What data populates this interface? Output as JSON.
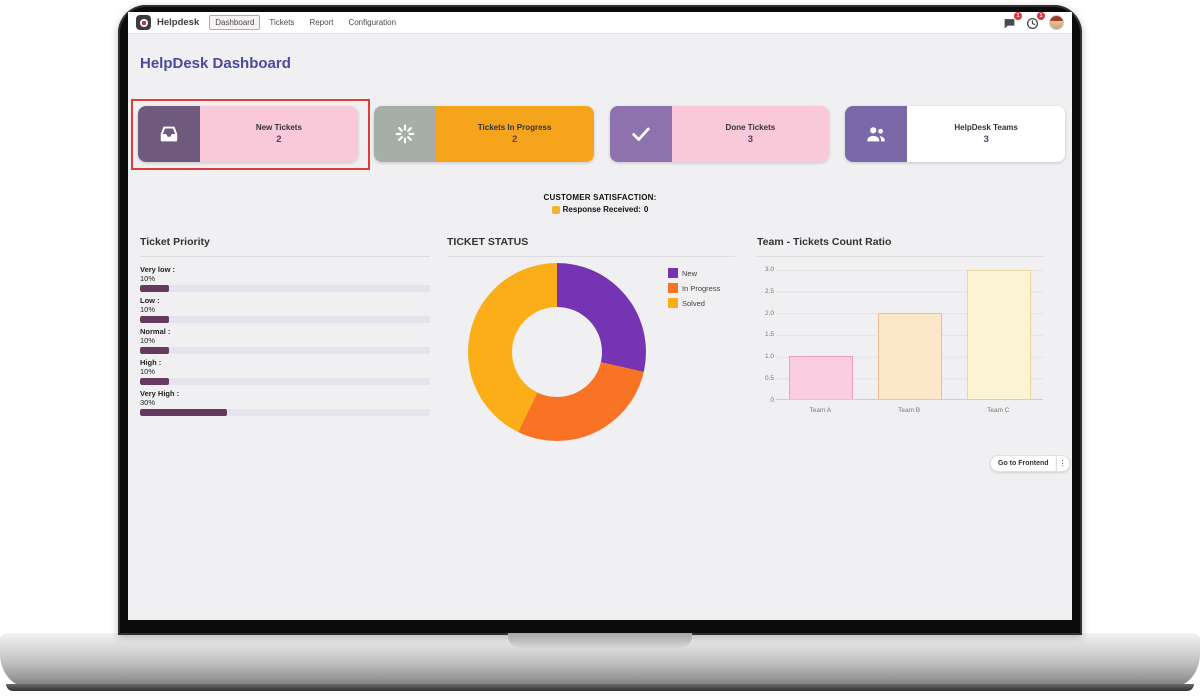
{
  "navbar": {
    "app_name": "Helpdesk",
    "menu": [
      {
        "label": "Dashboard",
        "active": true
      },
      {
        "label": "Tickets",
        "active": false
      },
      {
        "label": "Report",
        "active": false
      },
      {
        "label": "Configuration",
        "active": false
      }
    ],
    "messages_badge": "1",
    "activities_badge": "1"
  },
  "page_title": "HelpDesk Dashboard",
  "kpi_cards": [
    {
      "label": "New Tickets",
      "value": "2",
      "icon": "inbox-icon",
      "icon_bg": "#6f5a7d",
      "body_bg": "#f9c9da",
      "highlighted": true
    },
    {
      "label": "Tickets In Progress",
      "value": "2",
      "icon": "spinner-icon",
      "icon_bg": "#a5afa8",
      "body_bg": "#f6a41c",
      "highlighted": false
    },
    {
      "label": "Done Tickets",
      "value": "3",
      "icon": "check-icon",
      "icon_bg": "#8d72ae",
      "body_bg": "#f9c9da",
      "highlighted": false
    },
    {
      "label": "HelpDesk Teams",
      "value": "3",
      "icon": "team-icon",
      "icon_bg": "#7a68a8",
      "body_bg": "#ffffff",
      "highlighted": false
    }
  ],
  "satisfaction": {
    "title": "CUSTOMER SATISFACTION:",
    "label": "Response Received:",
    "value": "0"
  },
  "priority": {
    "title": "Ticket Priority",
    "bar_color": "#653a5e",
    "track_color": "#e7e2ec",
    "items": [
      {
        "label": "Very low :",
        "pct": "10%",
        "value": 10
      },
      {
        "label": "Low :",
        "pct": "10%",
        "value": 10
      },
      {
        "label": "Normal :",
        "pct": "10%",
        "value": 10
      },
      {
        "label": "High :",
        "pct": "10%",
        "value": 10
      },
      {
        "label": "Very High :",
        "pct": "30%",
        "value": 30
      }
    ]
  },
  "status": {
    "title": "TICKET STATUS",
    "chart_data": {
      "type": "pie",
      "donut": true,
      "labels": [
        "New",
        "In Progress",
        "Solved"
      ],
      "values": [
        2,
        2,
        3
      ],
      "colors": [
        "#7434b4",
        "#f87324",
        "#fbae17"
      ],
      "legend_position": "right"
    }
  },
  "teams": {
    "title": "Team - Tickets Count Ratio",
    "chart_data": {
      "type": "bar",
      "categories": [
        "Team A",
        "Team B",
        "Team C"
      ],
      "values": [
        1,
        2,
        3
      ],
      "ylim": [
        0,
        3
      ],
      "y_ticks": [
        "3.0",
        "2.5",
        "2.0",
        "1.5",
        "1.0",
        "0.5",
        "0"
      ],
      "bar_fills": [
        "#fbcde0",
        "#fde7c9",
        "#fdf4d6"
      ],
      "bar_borders": [
        "#f09ec0",
        "#eec08d",
        "#e9d79e"
      ],
      "grid": true
    }
  },
  "footer": {
    "frontend_button": "Go to Frontend"
  }
}
